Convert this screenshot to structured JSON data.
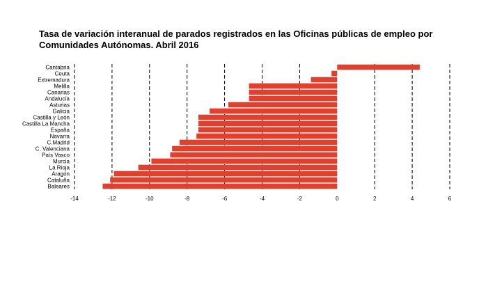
{
  "chart_data": {
    "type": "bar",
    "orientation": "horizontal",
    "title_line1": "Tasa de variación interanual de parados registrados en las Oficinas públicas de empleo por",
    "title_line2": "Comunidades Autónomas.  Abril 2016",
    "categories": [
      "Cantabria",
      "Ceuta",
      "Extremadura",
      "Melilla",
      "Canarias",
      "Andalucía",
      "Asturias",
      "Galicia",
      "Castilla y León",
      "Castilla La Mancha",
      "España",
      "Navarra",
      "C.Madrid",
      "C. Valenciana",
      "País Vasco",
      "Murcia",
      "La Rioja",
      "Aragón",
      "Cataluña",
      "Baleares"
    ],
    "values": [
      4.4,
      -0.3,
      -1.4,
      -4.7,
      -4.7,
      -4.7,
      -5.8,
      -6.8,
      -7.4,
      -7.4,
      -7.4,
      -7.5,
      -8.4,
      -8.8,
      -8.9,
      -9.9,
      -10.6,
      -11.9,
      -12.1,
      -12.5
    ],
    "xlim": [
      -14,
      6
    ],
    "xticks": [
      "-14",
      "-12",
      "-10",
      "-8",
      "-6",
      "-4",
      "-2",
      "0",
      "2",
      "4",
      "6"
    ],
    "bar_color": "#e0412f",
    "grid": "dashed vertical"
  }
}
